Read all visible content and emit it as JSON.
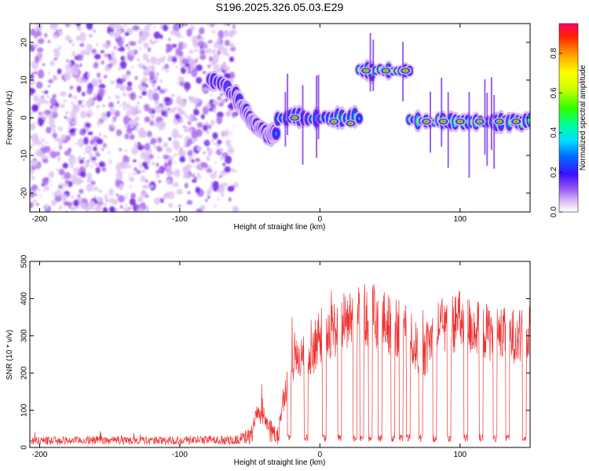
{
  "title": "S196.2025.326.05.03.E29",
  "chart_data": [
    {
      "type": "heatmap",
      "xlabel": "Height of straight line (km)",
      "ylabel": "Frequency (Hz)",
      "xlim": [
        -207,
        150
      ],
      "ylim": [
        -25,
        25
      ],
      "xticks": [
        -200,
        -100,
        0,
        100
      ],
      "yticks": [
        -20,
        -10,
        0,
        10,
        20
      ],
      "colorbar": {
        "label": "Normalized spectral amplitude",
        "range": [
          0,
          0.95
        ],
        "ticks": [
          "0.0",
          "0.2",
          "0.4",
          "0.6",
          "0.8"
        ],
        "tick_values": [
          0,
          0.2,
          0.4,
          0.6,
          0.8
        ]
      },
      "features": [
        {
          "name": "noise",
          "x_range": [
            -207,
            -60
          ],
          "y_range": [
            -25,
            25
          ],
          "amplitude": 0.15
        },
        {
          "name": "descending-ridge",
          "x": [
            -78,
            -68,
            -60,
            -55,
            -50,
            -45,
            -40,
            -35,
            -30
          ],
          "y": [
            10,
            8.5,
            5.5,
            3,
            0,
            -2,
            -4,
            -5,
            -3.5
          ],
          "amplitude": 0.25
        },
        {
          "name": "ridge",
          "x_range": [
            -30,
            28
          ],
          "y": 0,
          "amplitude": 0.55
        },
        {
          "name": "ridge",
          "x_range": [
            28,
            64
          ],
          "y": 12.5,
          "amplitude": 0.9
        },
        {
          "name": "ridge",
          "x_range": [
            64,
            150
          ],
          "y": -1,
          "amplitude": 0.85
        }
      ]
    },
    {
      "type": "line",
      "xlabel": "Height of straight line (km)",
      "ylabel": "SNR (10 * v/v)",
      "xlim": [
        -207,
        150
      ],
      "ylim": [
        0,
        500
      ],
      "xticks": [
        -200,
        -100,
        0,
        100
      ],
      "yticks": [
        0,
        100,
        200,
        300,
        400,
        500
      ],
      "color": "#ee3333",
      "series": [
        {
          "name": "SNR",
          "x": [
            -207,
            -180,
            -150,
            -120,
            -90,
            -60,
            -50,
            -45,
            -40,
            -35,
            -30,
            -25,
            -20,
            -15,
            -10,
            -5,
            0,
            5,
            10,
            20,
            30,
            40,
            50,
            60,
            65,
            70,
            75,
            80,
            90,
            100,
            110,
            120,
            130,
            140,
            150
          ],
          "values": [
            20,
            20,
            22,
            20,
            22,
            22,
            40,
            90,
            75,
            55,
            40,
            150,
            220,
            240,
            240,
            260,
            300,
            310,
            320,
            340,
            360,
            350,
            330,
            310,
            290,
            260,
            250,
            300,
            330,
            340,
            320,
            310,
            300,
            300,
            290
          ],
          "dropouts_x": [
            -22,
            -10,
            3,
            14,
            25,
            30,
            36,
            43,
            52,
            58,
            63,
            72,
            82,
            92,
            104,
            115,
            125,
            134,
            146
          ],
          "dropout_level": 25
        }
      ]
    }
  ]
}
